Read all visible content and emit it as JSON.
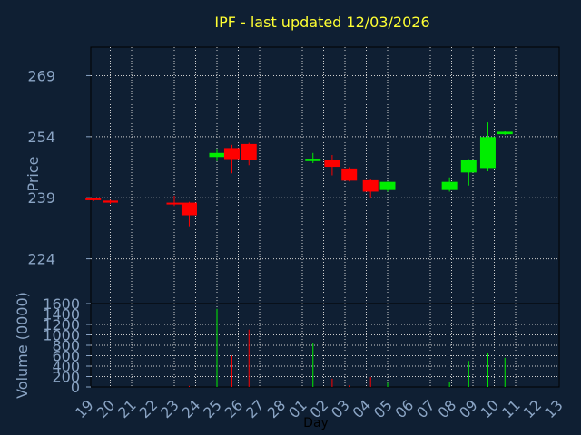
{
  "chart_data": {
    "type": "candlestick",
    "title": "IPF - last updated 12/03/2026",
    "xlabel": "Day",
    "colors": {
      "background": "#0f1f33",
      "frame": "#000000",
      "grid": "#d0d0d0",
      "axis_text": "#8aa4c4",
      "title": "#ffff33",
      "up": "#00ee00",
      "down": "#ff0000"
    },
    "x_ticks": [
      "19",
      "20",
      "21",
      "22",
      "23",
      "24",
      "25",
      "26",
      "27",
      "28",
      "01",
      "02",
      "03",
      "04",
      "05",
      "06",
      "07",
      "08",
      "09",
      "10",
      "11",
      "12",
      "13"
    ],
    "price_panel": {
      "ylabel": "Price",
      "ylim": [
        213,
        276
      ],
      "y_ticks": [
        224,
        239,
        254,
        269
      ],
      "candles": [
        {
          "x": 0.2,
          "open": 238.9,
          "close": 238.4,
          "high": 239.0,
          "low": 238.2
        },
        {
          "x": 1.0,
          "open": 238.3,
          "close": 237.8,
          "high": 238.5,
          "low": 237.5
        },
        {
          "x": 4.0,
          "open": 237.8,
          "close": 237.5,
          "high": 239.5,
          "low": 237.0
        },
        {
          "x": 4.7,
          "open": 237.8,
          "close": 234.7,
          "high": 238.0,
          "low": 232.0
        },
        {
          "x": 6.0,
          "open": 249.0,
          "close": 250.0,
          "high": 251.0,
          "low": 248.0
        },
        {
          "x": 6.7,
          "open": 251.2,
          "close": 248.5,
          "high": 252.0,
          "low": 245.0
        },
        {
          "x": 7.5,
          "open": 252.2,
          "close": 248.3,
          "high": 252.5,
          "low": 247.0
        },
        {
          "x": 10.5,
          "open": 248.0,
          "close": 248.6,
          "high": 250.0,
          "low": 247.5
        },
        {
          "x": 11.4,
          "open": 248.3,
          "close": 246.6,
          "high": 249.5,
          "low": 244.5
        },
        {
          "x": 12.2,
          "open": 246.2,
          "close": 243.2,
          "high": 246.5,
          "low": 243.0
        },
        {
          "x": 13.2,
          "open": 243.3,
          "close": 240.5,
          "high": 243.5,
          "low": 239.0
        },
        {
          "x": 14.0,
          "open": 240.9,
          "close": 242.9,
          "high": 243.0,
          "low": 240.5
        },
        {
          "x": 16.9,
          "open": 240.9,
          "close": 242.9,
          "high": 244.0,
          "low": 240.5
        },
        {
          "x": 17.8,
          "open": 245.2,
          "close": 248.3,
          "high": 248.5,
          "low": 242.0
        },
        {
          "x": 18.7,
          "open": 246.3,
          "close": 253.9,
          "high": 257.5,
          "low": 245.5
        },
        {
          "x": 19.5,
          "open": 254.6,
          "close": 255.2,
          "high": 255.5,
          "low": 254.4
        }
      ]
    },
    "volume_panel": {
      "ylabel": "Volume (0000)",
      "ylim": [
        0,
        1600
      ],
      "y_ticks": [
        0,
        200,
        400,
        600,
        800,
        1000,
        1200,
        1400,
        1600
      ],
      "bars": [
        {
          "x": 4.0,
          "value": 0,
          "dir": "down"
        },
        {
          "x": 4.7,
          "value": 20,
          "dir": "down"
        },
        {
          "x": 6.0,
          "value": 1500,
          "dir": "up"
        },
        {
          "x": 6.7,
          "value": 600,
          "dir": "down"
        },
        {
          "x": 7.5,
          "value": 1100,
          "dir": "down"
        },
        {
          "x": 10.5,
          "value": 850,
          "dir": "up"
        },
        {
          "x": 11.4,
          "value": 160,
          "dir": "down"
        },
        {
          "x": 12.2,
          "value": 30,
          "dir": "down"
        },
        {
          "x": 13.2,
          "value": 190,
          "dir": "down"
        },
        {
          "x": 14.0,
          "value": 80,
          "dir": "up"
        },
        {
          "x": 16.9,
          "value": 90,
          "dir": "up"
        },
        {
          "x": 17.8,
          "value": 500,
          "dir": "up"
        },
        {
          "x": 18.7,
          "value": 650,
          "dir": "up"
        },
        {
          "x": 19.5,
          "value": 560,
          "dir": "up"
        }
      ]
    }
  }
}
